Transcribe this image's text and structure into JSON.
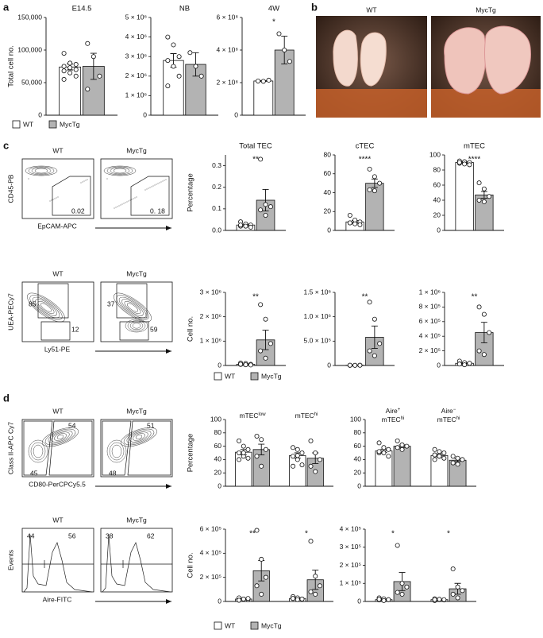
{
  "figure": {
    "panel_labels": [
      "a",
      "b",
      "c",
      "d"
    ],
    "photos": {
      "labels": [
        "WT",
        "MycTg"
      ]
    },
    "flow": [
      {
        "headers": [
          "WT",
          "MycTg"
        ],
        "y_label": "CD45-PB",
        "x_label": "EpCAM-APC",
        "gates": [
          [
            "0.02"
          ],
          [
            "0. 18"
          ]
        ]
      },
      {
        "headers": [
          "WT",
          "MycTg"
        ],
        "y_label": "UEA-PECy7",
        "x_label": "Ly51-PE",
        "gates": [
          [
            "85",
            "12"
          ],
          [
            "37",
            "59"
          ]
        ]
      },
      {
        "headers": [
          "WT",
          "MycTg"
        ],
        "y_label": "Class II-APC Cy7",
        "x_label": "CD80-PerCPCy5.5",
        "gates": [
          [
            "54",
            "45"
          ],
          [
            "51",
            "48"
          ]
        ]
      },
      {
        "headers": [
          "WT",
          "MycTg"
        ],
        "y_label": "Events",
        "x_label": "Aire-FITC",
        "gates": [
          [
            "44",
            "56"
          ],
          [
            "38",
            "62"
          ]
        ]
      }
    ]
  },
  "chart_data": [
    {
      "type": "bar",
      "title": "E14.5",
      "ylabel": "Total cell no.",
      "ylim": [
        0,
        150000
      ],
      "yticks": [
        0,
        {
          "value": 50000,
          "label": "50,000"
        },
        {
          "value": 100000,
          "label": "100,000"
        },
        {
          "value": 150000,
          "label": "150,000"
        }
      ],
      "categories": [
        null
      ],
      "legend": true,
      "significance": [
        null
      ],
      "series": [
        {
          "name": "WT",
          "color": "#ffffff",
          "values": [
            74000
          ],
          "errors": [
            4500
          ],
          "points": [
            [
              95000,
              80000,
              78000,
              75000,
              73000,
              70000,
              68000,
              65000,
              60000,
              55000
            ]
          ]
        },
        {
          "name": "MycTg",
          "color": "#b3b3b3",
          "values": [
            75000
          ],
          "errors": [
            20000
          ],
          "points": [
            [
              110000,
              90000,
              60000,
              40000
            ]
          ]
        }
      ]
    },
    {
      "type": "bar",
      "title": "NB",
      "ylim": [
        0,
        5000000
      ],
      "yticks": [
        0,
        {
          "value": 1000000,
          "label": "1 × 10⁶"
        },
        {
          "value": 2000000,
          "label": "2 × 10⁶"
        },
        {
          "value": 3000000,
          "label": "3 × 10⁶"
        },
        {
          "value": 4000000,
          "label": "4 × 10⁶"
        },
        {
          "value": 5000000,
          "label": "5 × 10⁶"
        }
      ],
      "categories": [
        null
      ],
      "significance": [
        null
      ],
      "series": [
        {
          "name": "WT",
          "color": "#ffffff",
          "values": [
            2800000
          ],
          "errors": [
            350000
          ],
          "points": [
            [
              4000000,
              3600000,
              3000000,
              2800000,
              2500000,
              2000000,
              1500000
            ]
          ]
        },
        {
          "name": "MycTg",
          "color": "#b3b3b3",
          "values": [
            2600000
          ],
          "errors": [
            600000
          ],
          "points": [
            [
              3200000,
              2500000,
              2000000
            ]
          ]
        }
      ]
    },
    {
      "type": "bar",
      "title": "4W",
      "ylim": [
        0,
        600000000
      ],
      "yticks": [
        0,
        {
          "value": 200000000,
          "label": "2 × 10⁸"
        },
        {
          "value": 400000000,
          "label": "4 × 10⁸"
        },
        {
          "value": 600000000,
          "label": "6 × 10⁸"
        }
      ],
      "categories": [
        null
      ],
      "significance": [
        "*"
      ],
      "series": [
        {
          "name": "WT",
          "color": "#ffffff",
          "values": [
            210000000
          ],
          "errors": [
            3000000
          ],
          "points": [
            [
              210000000,
              208000000,
              215000000
            ]
          ]
        },
        {
          "name": "MycTg",
          "color": "#b3b3b3",
          "values": [
            400000000
          ],
          "errors": [
            85000000
          ],
          "points": [
            [
              500000000,
              400000000,
              330000000
            ]
          ]
        }
      ]
    },
    {
      "type": "bar",
      "title": "Total TEC",
      "ylabel": "Percentage",
      "ylim": [
        0,
        0.35
      ],
      "yticks": [
        {
          "value": 0,
          "label": "0.0"
        },
        0.1,
        0.2,
        0.3
      ],
      "categories": [
        null
      ],
      "significance": [
        "**"
      ],
      "series": [
        {
          "name": "WT",
          "color": "#ffffff",
          "values": [
            0.025
          ],
          "errors": [
            0.004
          ],
          "points": [
            [
              0.04,
              0.03,
              0.025,
              0.02,
              0.02,
              0.015,
              0.025
            ]
          ]
        },
        {
          "name": "MycTg",
          "color": "#b3b3b3",
          "values": [
            0.14
          ],
          "errors": [
            0.05
          ],
          "points": [
            [
              0.33,
              0.12,
              0.11,
              0.095,
              0.07
            ]
          ]
        }
      ]
    },
    {
      "type": "bar",
      "title": "cTEC",
      "ylim": [
        0,
        80
      ],
      "yticks": [
        0,
        20,
        40,
        60,
        80
      ],
      "categories": [
        null
      ],
      "significance": [
        "****"
      ],
      "series": [
        {
          "name": "WT",
          "color": "#ffffff",
          "values": [
            9
          ],
          "errors": [
            1.5
          ],
          "points": [
            [
              16,
              11,
              9,
              8,
              7,
              6,
              8
            ]
          ]
        },
        {
          "name": "MycTg",
          "color": "#b3b3b3",
          "values": [
            50
          ],
          "errors": [
            4.5
          ],
          "points": [
            [
              65,
              57,
              50,
              43,
              42
            ]
          ]
        }
      ]
    },
    {
      "type": "bar",
      "title": "mTEC",
      "ylim": [
        0,
        100
      ],
      "yticks": [
        0,
        20,
        40,
        60,
        80,
        100
      ],
      "categories": [
        null
      ],
      "significance": [
        "****"
      ],
      "series": [
        {
          "name": "WT",
          "color": "#ffffff",
          "values": [
            90
          ],
          "errors": [
            1
          ],
          "points": [
            [
              92,
              91,
              90,
              89,
              88,
              87,
              90
            ]
          ]
        },
        {
          "name": "MycTg",
          "color": "#b3b3b3",
          "values": [
            47
          ],
          "errors": [
            4.5
          ],
          "points": [
            [
              63,
              55,
              45,
              40,
              38
            ]
          ]
        }
      ]
    },
    {
      "type": "bar",
      "ylabel": "Cell no.",
      "ylim": [
        0,
        3000000
      ],
      "yticks": [
        0,
        {
          "value": 1000000,
          "label": "1 × 10⁶"
        },
        {
          "value": 2000000,
          "label": "2 × 10⁶"
        },
        {
          "value": 3000000,
          "label": "3 × 10⁶"
        }
      ],
      "categories": [
        null
      ],
      "legend": true,
      "significance": [
        "**"
      ],
      "series": [
        {
          "name": "WT",
          "color": "#ffffff",
          "values": [
            50000
          ],
          "errors": [
            10000
          ],
          "points": [
            [
              100000,
              80000,
              50000,
              40000,
              30000,
              20000,
              50000
            ]
          ]
        },
        {
          "name": "MycTg",
          "color": "#b3b3b3",
          "values": [
            1050000
          ],
          "errors": [
            400000
          ],
          "points": [
            [
              2500000,
              1900000,
              900000,
              600000,
              300000
            ]
          ]
        }
      ]
    },
    {
      "type": "bar",
      "ylim": [
        0,
        1500000
      ],
      "yticks": [
        0,
        {
          "value": 500000,
          "label": "5.0 × 10⁵"
        },
        {
          "value": 1000000,
          "label": "1.0 × 10⁶"
        },
        {
          "value": 1500000,
          "label": "1.5 × 10⁶"
        }
      ],
      "categories": [
        null
      ],
      "significance": [
        "**"
      ],
      "series": [
        {
          "name": "WT",
          "color": "#ffffff",
          "values": [
            5000
          ],
          "errors": [
            500
          ],
          "points": [
            [
              5000,
              4000,
              6000,
              5000,
              3000,
              4000,
              5000
            ]
          ]
        },
        {
          "name": "MycTg",
          "color": "#b3b3b3",
          "values": [
            580000
          ],
          "errors": [
            230000
          ],
          "points": [
            [
              1300000,
              950000,
              450000,
              300000,
              200000
            ]
          ]
        }
      ]
    },
    {
      "type": "bar",
      "ylim": [
        0,
        1000000
      ],
      "yticks": [
        0,
        {
          "value": 200000,
          "label": "2 × 10⁵"
        },
        {
          "value": 400000,
          "label": "4 × 10⁵"
        },
        {
          "value": 600000,
          "label": "6 × 10⁵"
        },
        {
          "value": 800000,
          "label": "8 × 10⁵"
        },
        {
          "value": 1000000,
          "label": "1 × 10⁶"
        }
      ],
      "categories": [
        null
      ],
      "significance": [
        "**"
      ],
      "series": [
        {
          "name": "WT",
          "color": "#ffffff",
          "values": [
            30000
          ],
          "errors": [
            7000
          ],
          "points": [
            [
              60000,
              40000,
              30000,
              20000,
              10000,
              30000,
              20000
            ]
          ]
        },
        {
          "name": "MycTg",
          "color": "#b3b3b3",
          "values": [
            450000
          ],
          "errors": [
            140000
          ],
          "points": [
            [
              800000,
              700000,
              450000,
              200000,
              150000
            ]
          ]
        }
      ]
    },
    {
      "type": "bar",
      "ylabel": "Percentage",
      "ylim": [
        0,
        100
      ],
      "yticks": [
        0,
        20,
        40,
        60,
        80,
        100
      ],
      "categories": [
        [
          {
            "base": "mTEC",
            "sup": "low"
          }
        ],
        [
          {
            "base": "mTEC",
            "sup": "hi"
          }
        ]
      ],
      "significance": [
        null,
        null
      ],
      "series": [
        {
          "name": "WT",
          "color": "#ffffff",
          "values": [
            51,
            46
          ],
          "errors": [
            4,
            4
          ],
          "points": [
            [
              68,
              60,
              55,
              50,
              45,
              42,
              40,
              50
            ],
            [
              58,
              55,
              50,
              45,
              40,
              32,
              30,
              46
            ]
          ]
        },
        {
          "name": "MycTg",
          "color": "#b3b3b3",
          "values": [
            55,
            42
          ],
          "errors": [
            8,
            8
          ],
          "points": [
            [
              75,
              70,
              55,
              45,
              30
            ],
            [
              68,
              50,
              40,
              30,
              22
            ]
          ]
        }
      ]
    },
    {
      "type": "bar",
      "ylim": [
        0,
        100
      ],
      "yticks": [
        0,
        20,
        40,
        60,
        80,
        100
      ],
      "categories": [
        [
          {
            "base": "Aire",
            "sup": "+"
          },
          {
            "base": "mTEC",
            "sup": "hi"
          }
        ],
        [
          {
            "base": "Aire",
            "sup": "−"
          },
          {
            "base": "mTEC",
            "sup": "hi"
          }
        ]
      ],
      "significance": [
        null,
        null
      ],
      "series": [
        {
          "name": "WT",
          "color": "#ffffff",
          "values": [
            53,
            46
          ],
          "errors": [
            2.5,
            2
          ],
          "points": [
            [
              65,
              58,
              55,
              50,
              50,
              45,
              52
            ],
            [
              55,
              52,
              50,
              47,
              45,
              42,
              40,
              45
            ]
          ]
        },
        {
          "name": "MycTg",
          "color": "#b3b3b3",
          "values": [
            60,
            39
          ],
          "errors": [
            2,
            2
          ],
          "points": [
            [
              68,
              62,
              60,
              58,
              55
            ],
            [
              45,
              42,
              40,
              35,
              33
            ]
          ]
        }
      ]
    },
    {
      "type": "bar",
      "ylabel": "Cell no.",
      "ylim": [
        0,
        600000
      ],
      "yticks": [
        0,
        {
          "value": 200000,
          "label": "2 × 10⁵"
        },
        {
          "value": 400000,
          "label": "4 × 10⁵"
        },
        {
          "value": 600000,
          "label": "6 × 10⁵"
        }
      ],
      "categories": [
        null,
        null
      ],
      "legend": true,
      "significance": [
        "**",
        "*"
      ],
      "series": [
        {
          "name": "WT",
          "color": "#ffffff",
          "values": [
            20000,
            25000
          ],
          "errors": [
            4000,
            4000
          ],
          "points": [
            [
              30000,
              20000,
              15000,
              10000,
              20000,
              25000,
              10000
            ],
            [
              40000,
              30000,
              20000,
              25000,
              15000,
              20000,
              25000
            ]
          ]
        },
        {
          "name": "MycTg",
          "color": "#b3b3b3",
          "values": [
            255000,
            180000
          ],
          "errors": [
            85000,
            80000
          ],
          "points": [
            [
              590000,
              350000,
              200000,
              130000,
              60000
            ],
            [
              500000,
              210000,
              130000,
              80000,
              60000
            ]
          ]
        }
      ]
    },
    {
      "type": "bar",
      "ylim": [
        0,
        400000
      ],
      "yticks": [
        0,
        {
          "value": 100000,
          "label": "1 × 10⁵"
        },
        {
          "value": 200000,
          "label": "2 × 10⁵"
        },
        {
          "value": 300000,
          "label": "3 × 10⁵"
        },
        {
          "value": 400000,
          "label": "4 × 10⁵"
        }
      ],
      "categories": [
        null,
        null
      ],
      "significance": [
        "*",
        "*"
      ],
      "series": [
        {
          "name": "WT",
          "color": "#ffffff",
          "values": [
            10000,
            10000
          ],
          "errors": [
            2500,
            2000
          ],
          "points": [
            [
              20000,
              15000,
              10000,
              8000,
              5000,
              10000,
              12000
            ],
            [
              15000,
              10000,
              8000,
              5000,
              12000,
              10000,
              10000
            ]
          ]
        },
        {
          "name": "MycTg",
          "color": "#b3b3b3",
          "values": [
            110000,
            70000
          ],
          "errors": [
            50000,
            30000
          ],
          "points": [
            [
              310000,
              100000,
              80000,
              50000,
              40000
            ],
            [
              180000,
              80000,
              60000,
              40000,
              20000
            ]
          ]
        }
      ]
    }
  ]
}
